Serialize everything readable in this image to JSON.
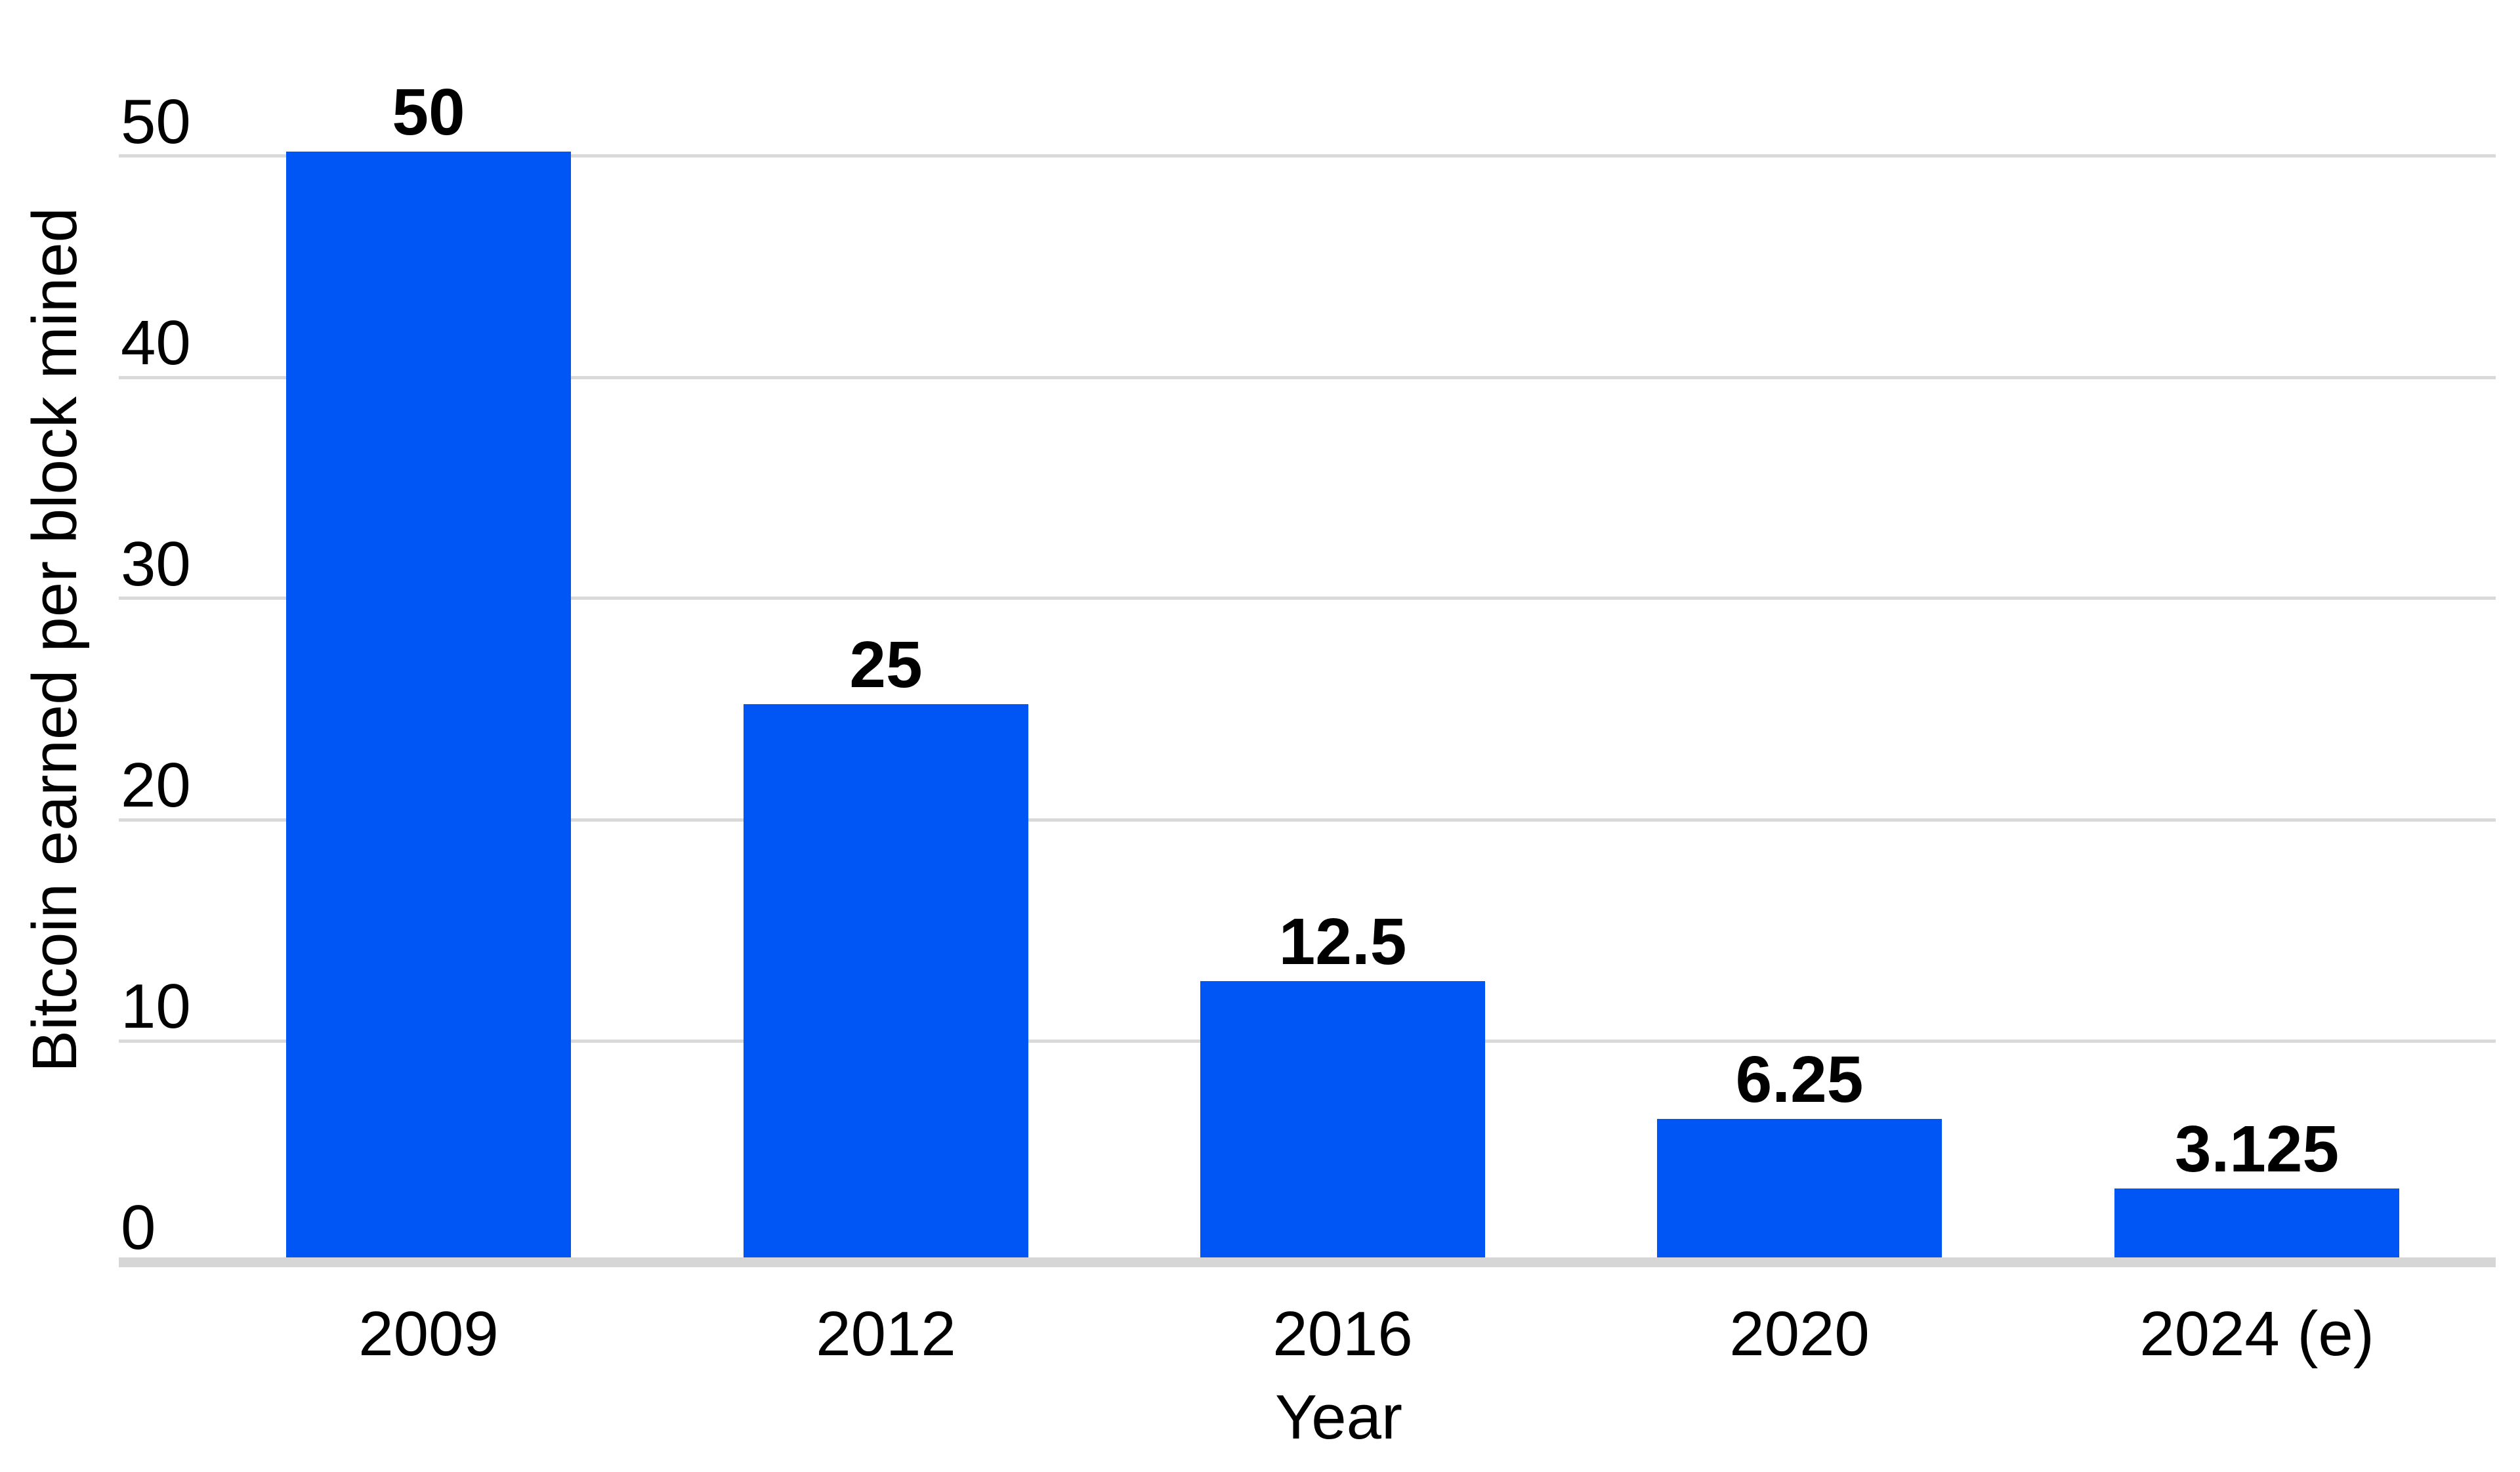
{
  "chart_data": {
    "type": "bar",
    "title": "",
    "categories": [
      "2009",
      "2012",
      "2016",
      "2020",
      "2024 (e)"
    ],
    "values": [
      50,
      25,
      12.5,
      6.25,
      3.125
    ],
    "bar_labels": [
      "50",
      "25",
      "12.5",
      "6.25",
      "3.125"
    ],
    "xlabel": "Year",
    "ylabel": "Bitcoin earned per block mined",
    "y_ticks": [
      0,
      10,
      20,
      30,
      40,
      50
    ],
    "y_tick_labels": [
      "0",
      "10",
      "20",
      "30",
      "40",
      "50"
    ],
    "ylim": [
      0,
      50
    ],
    "grid": "horizontal-only",
    "legend": "none",
    "colors": {
      "bar": "#0056F5",
      "gridline": "#D9D9D9",
      "axis_line": "#D6D6D6",
      "text": "#000000",
      "background": "#FFFFFF"
    }
  }
}
